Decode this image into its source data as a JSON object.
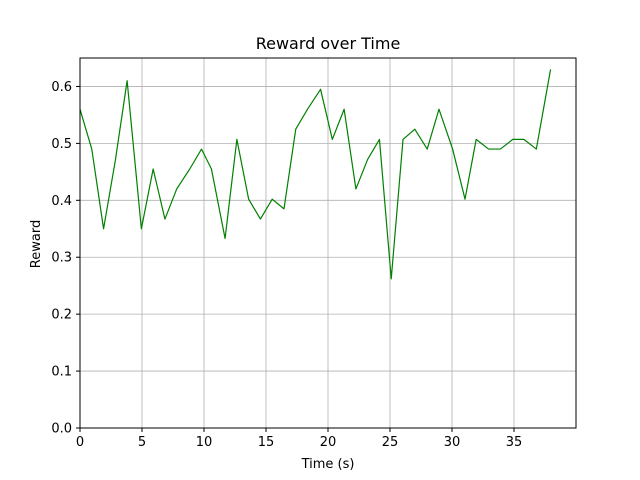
{
  "chart_data": {
    "type": "line",
    "title": "Reward over Time",
    "xlabel": "Time (s)",
    "ylabel": "Reward",
    "xlim": [
      0,
      40
    ],
    "ylim": [
      0.0,
      0.65
    ],
    "x_ticks": [
      0,
      5,
      10,
      15,
      20,
      25,
      30,
      35
    ],
    "y_ticks": [
      0.0,
      0.1,
      0.2,
      0.3,
      0.4,
      0.5,
      0.6
    ],
    "grid": true,
    "series": [
      {
        "color": "#008000",
        "x": [
          0.0,
          0.95,
          1.9,
          2.85,
          3.8,
          4.95,
          5.9,
          6.85,
          7.8,
          8.85,
          9.8,
          10.6,
          11.7,
          12.65,
          13.6,
          14.55,
          15.5,
          16.45,
          17.4,
          18.35,
          19.4,
          20.35,
          21.3,
          22.25,
          23.2,
          24.15,
          25.1,
          26.05,
          27.0,
          28.0,
          28.95,
          30.05,
          31.05,
          31.95,
          32.95,
          33.9,
          34.9,
          35.8,
          36.8,
          37.95
        ],
        "values": [
          0.56,
          0.49,
          0.35,
          0.47,
          0.61,
          0.35,
          0.455,
          0.367,
          0.42,
          0.455,
          0.49,
          0.455,
          0.333,
          0.507,
          0.402,
          0.367,
          0.402,
          0.385,
          0.525,
          0.56,
          0.595,
          0.507,
          0.56,
          0.42,
          0.472,
          0.507,
          0.262,
          0.507,
          0.525,
          0.49,
          0.56,
          0.49,
          0.402,
          0.507,
          0.49,
          0.49,
          0.507,
          0.507,
          0.49,
          0.63
        ]
      }
    ]
  }
}
